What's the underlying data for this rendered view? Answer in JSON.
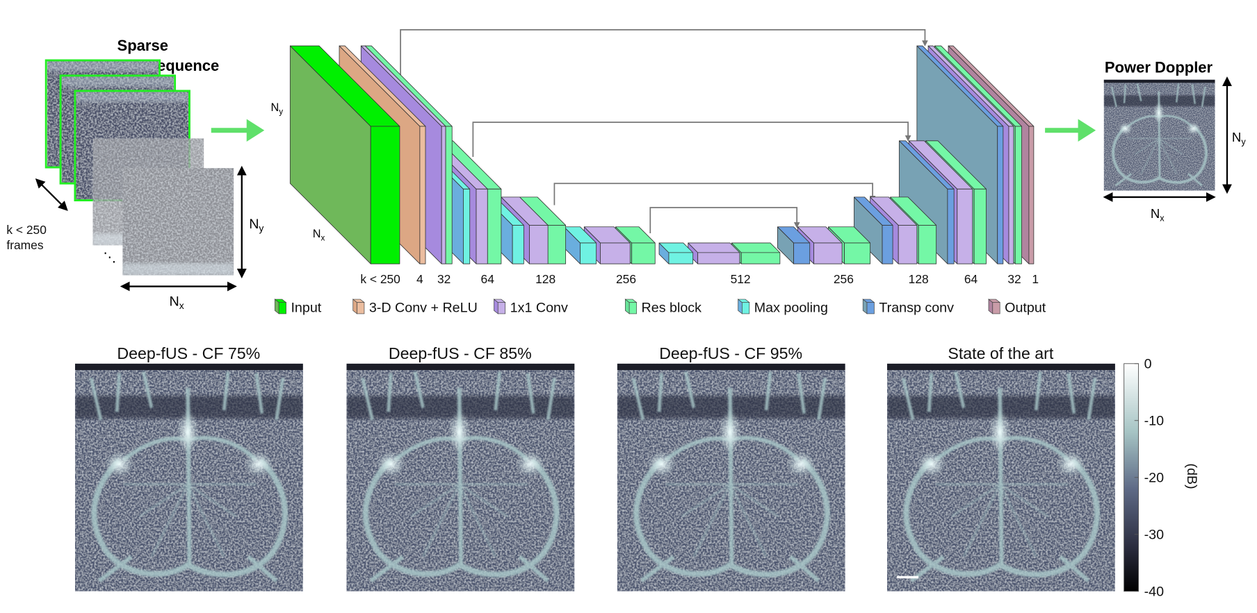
{
  "input": {
    "title_line1": "Sparse",
    "title_line2": "compound sequence",
    "frames_label_line1": "k < 250",
    "frames_label_line2": "frames",
    "ny": "N",
    "ny_sub": "y",
    "nx": "N",
    "nx_sub": "x",
    "ellipsis": "⋱"
  },
  "network": {
    "ny": "N",
    "ny_sub": "y",
    "nx": "N",
    "nx_sub": "x",
    "channel_labels": [
      "k < 250",
      "4",
      "32",
      "64",
      "128",
      "256",
      "512",
      "256",
      "128",
      "64",
      "32",
      "1"
    ]
  },
  "legend": [
    {
      "label": "Input",
      "front": "#00f000",
      "side": "#6fb85a"
    },
    {
      "label": "3-D Conv + ReLU",
      "front": "#ebbd9f",
      "side": "#dca784"
    },
    {
      "label": "1x1 Conv",
      "front": "#c6b0e8",
      "side": "#a68ade"
    },
    {
      "label": "Res block",
      "front": "#74f7a6",
      "side": "#68e59a"
    },
    {
      "label": "Max pooling",
      "front": "#6ff2e2",
      "side": "#6aaede"
    },
    {
      "label": "Transp conv",
      "front": "#6b9fe0",
      "side": "#78a2b4"
    },
    {
      "label": "Output",
      "front": "#c99ca8",
      "side": "#b0849f"
    }
  ],
  "output": {
    "title": "Power Doppler",
    "ny": "N",
    "ny_sub": "y",
    "nx": "N",
    "nx_sub": "x"
  },
  "panels": [
    {
      "title": "Deep-fUS - CF 75%"
    },
    {
      "title": "Deep-fUS - CF 85%"
    },
    {
      "title": "Deep-fUS - CF 95%"
    },
    {
      "title": "State of the art"
    }
  ],
  "colorbar": {
    "ticks": [
      "0",
      "-10",
      "-20",
      "-30",
      "-40"
    ],
    "unit": "(dB)",
    "range": [
      -40,
      0
    ]
  },
  "colors": {
    "arrow_green": "#5fe06a",
    "skip_line": "#777777",
    "frame_border": "#22ee22"
  }
}
